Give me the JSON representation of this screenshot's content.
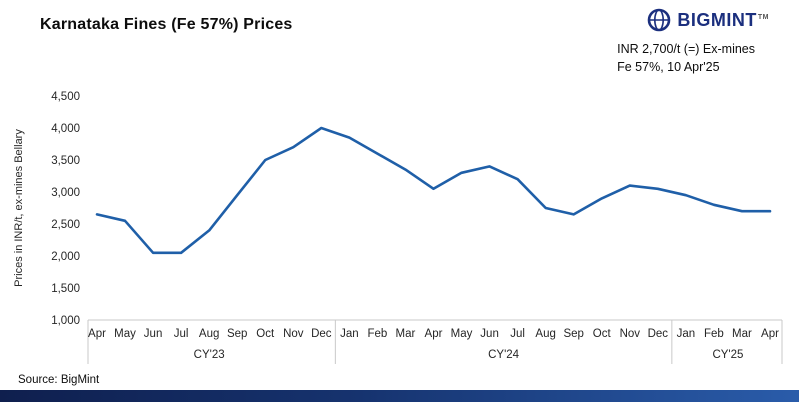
{
  "header": {
    "title": "Karnataka Fines (Fe 57%) Prices"
  },
  "logo": {
    "text": "BIGMINT",
    "tm": "TM"
  },
  "annotation": {
    "line1": "INR 2,700/t (=) Ex-mines",
    "line2": "Fe 57%, 10 Apr'25"
  },
  "source": "Source: BigMint",
  "chart_data": {
    "type": "line",
    "title": "Karnataka Fines (Fe 57%) Prices",
    "ylabel": "Prices in INR/t, ex-mines Bellary",
    "ylim": [
      1000,
      4500
    ],
    "ytick_step": 500,
    "yticks": [
      1000,
      1500,
      2000,
      2500,
      3000,
      3500,
      4000,
      4500
    ],
    "grid": false,
    "line_color": "#1f5fa8",
    "axis_color": "#c9c9c9",
    "months": [
      "Apr",
      "May",
      "Jun",
      "Jul",
      "Aug",
      "Sep",
      "Oct",
      "Nov",
      "Dec",
      "Jan",
      "Feb",
      "Mar",
      "Apr",
      "May",
      "Jun",
      "Jul",
      "Aug",
      "Sep",
      "Oct",
      "Nov",
      "Dec",
      "Jan",
      "Feb",
      "Mar",
      "Apr"
    ],
    "values": [
      2650,
      2550,
      2050,
      2050,
      2400,
      2950,
      3500,
      3700,
      4000,
      3850,
      3600,
      3350,
      3050,
      3300,
      3400,
      3200,
      2750,
      2650,
      2900,
      3100,
      3050,
      2950,
      2800,
      2700,
      2700
    ],
    "year_groups": [
      {
        "label": "CY'23",
        "start": 0,
        "end": 8
      },
      {
        "label": "CY'24",
        "start": 9,
        "end": 20
      },
      {
        "label": "CY'25",
        "start": 21,
        "end": 24
      }
    ]
  }
}
